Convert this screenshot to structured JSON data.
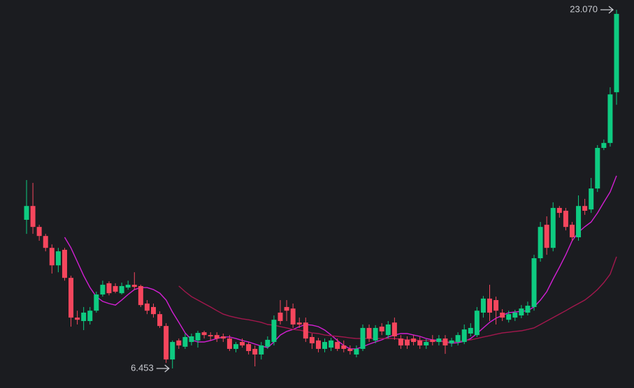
{
  "chart_data": {
    "type": "candlestick",
    "up_color": "#0ecb81",
    "down_color": "#f6465d",
    "open": [
      13.34,
      13.98,
      13.01,
      12.59,
      12.04,
      11.23,
      11.95,
      10.65,
      8.81,
      8.65,
      8.65,
      9.13,
      9.88,
      10.4,
      10.27,
      9.94,
      10.2,
      10.33,
      10.27,
      9.46,
      9.3,
      8.97,
      8.42,
      6.87,
      7.75,
      7.46,
      7.68,
      7.75,
      8.13,
      8.0,
      8.0,
      7.94,
      7.84,
      7.36,
      7.68,
      7.58,
      7.36,
      7.1,
      7.46,
      7.68,
      9.04,
      9.3,
      9.23,
      8.58,
      8.58,
      7.91,
      7.75,
      7.36,
      7.42,
      7.68,
      7.52,
      7.36,
      7.1,
      7.36,
      8.33,
      7.75,
      8.39,
      8.0,
      8.58,
      7.84,
      7.78,
      7.84,
      7.75,
      7.52,
      7.78,
      7.68,
      7.84,
      7.62,
      7.68,
      7.68,
      8.07,
      8.0,
      9.04,
      9.69,
      9.62,
      9.04,
      8.71,
      8.81,
      8.91,
      9.04,
      9.3,
      11.56,
      13.11,
      12.04,
      13.89,
      13.76,
      13.11,
      12.53,
      13.98,
      13.82,
      14.79,
      16.67,
      16.9,
      19.25
    ],
    "high": [
      15.18,
      15.05,
      13.11,
      12.69,
      12.2,
      12.04,
      12.04,
      10.75,
      9.13,
      9.3,
      9.3,
      10.01,
      10.52,
      10.49,
      10.4,
      10.43,
      10.52,
      10.91,
      10.33,
      9.62,
      9.46,
      9.1,
      8.55,
      7.75,
      7.84,
      8.07,
      8.07,
      8.2,
      8.2,
      8.13,
      8.13,
      8.07,
      8.0,
      7.68,
      7.84,
      7.68,
      7.52,
      7.68,
      7.94,
      8.91,
      9.62,
      9.62,
      9.46,
      8.81,
      8.81,
      8.07,
      7.87,
      7.84,
      7.87,
      7.84,
      7.75,
      7.52,
      7.52,
      8.49,
      8.49,
      8.46,
      8.55,
      8.65,
      8.81,
      8.0,
      7.94,
      8.0,
      7.91,
      7.81,
      8.0,
      8.0,
      8.0,
      7.87,
      8.13,
      8.49,
      8.55,
      9.3,
      9.81,
      10.33,
      9.78,
      9.2,
      9.13,
      9.17,
      9.39,
      9.55,
      11.72,
      13.24,
      13.5,
      14.15,
      13.98,
      13.89,
      13.24,
      14.47,
      14.31,
      15.28,
      16.8,
      17.06,
      19.48,
      23.07
    ],
    "low": [
      12.69,
      12.69,
      12.37,
      11.88,
      10.85,
      10.91,
      10.52,
      8.39,
      8.49,
      8.23,
      8.49,
      9.04,
      9.78,
      9.84,
      9.94,
      9.88,
      10.1,
      10.1,
      9.3,
      8.97,
      8.81,
      8.33,
      6.71,
      6.453,
      7.36,
      7.36,
      7.52,
      7.42,
      7.84,
      7.75,
      7.68,
      7.68,
      7.26,
      7.2,
      7.42,
      7.1,
      6.55,
      6.87,
      7.36,
      7.52,
      8.49,
      8.65,
      8.33,
      8.33,
      7.68,
      7.36,
      7.2,
      7.2,
      7.26,
      7.26,
      7.2,
      7.1,
      6.97,
      7.26,
      7.68,
      7.62,
      8.0,
      7.84,
      7.78,
      7.36,
      7.36,
      7.52,
      7.36,
      7.36,
      7.52,
      7.52,
      7.13,
      7.46,
      7.52,
      7.58,
      7.94,
      7.91,
      8.81,
      8.65,
      8.49,
      8.65,
      8.58,
      8.65,
      8.78,
      8.91,
      9.13,
      11.4,
      11.72,
      11.88,
      13.44,
      12.85,
      12.37,
      12.37,
      13.57,
      13.66,
      14.63,
      16.57,
      16.73,
      18.67
    ],
    "close": [
      13.98,
      13.01,
      12.59,
      12.04,
      11.23,
      11.88,
      10.65,
      8.81,
      8.71,
      9.04,
      9.13,
      9.88,
      10.33,
      9.94,
      10.01,
      10.27,
      10.33,
      10.23,
      9.39,
      9.13,
      8.97,
      8.42,
      6.87,
      7.68,
      7.52,
      7.91,
      7.94,
      8.1,
      8.0,
      7.94,
      7.84,
      7.84,
      7.36,
      7.58,
      7.52,
      7.26,
      7.1,
      7.52,
      7.78,
      8.71,
      8.65,
      9.13,
      8.49,
      8.49,
      7.84,
      7.62,
      7.36,
      7.68,
      7.75,
      7.36,
      7.36,
      7.26,
      7.36,
      8.33,
      7.84,
      8.33,
      8.17,
      8.49,
      7.94,
      7.52,
      7.52,
      7.68,
      7.52,
      7.68,
      7.68,
      7.84,
      7.52,
      7.75,
      8.0,
      8.26,
      8.33,
      9.13,
      9.69,
      9.04,
      9.13,
      8.81,
      8.97,
      9.04,
      9.23,
      9.36,
      11.56,
      13.01,
      12.04,
      13.89,
      13.66,
      13.01,
      12.53,
      13.98,
      13.76,
      14.79,
      16.67,
      16.9,
      19.15,
      22.88
    ],
    "series": [
      {
        "color": "#d41fd4",
        "values": [
          null,
          null,
          null,
          null,
          null,
          null,
          12.53,
          12.04,
          11.4,
          10.75,
          10.2,
          9.78,
          9.56,
          9.46,
          9.39,
          9.62,
          9.88,
          10.11,
          10.2,
          10.2,
          10.11,
          9.94,
          9.62,
          9.07,
          8.59,
          8.1,
          7.78,
          7.68,
          7.68,
          7.75,
          7.84,
          7.91,
          7.91,
          7.84,
          7.75,
          7.68,
          7.58,
          7.49,
          7.42,
          7.68,
          8.0,
          8.17,
          8.26,
          8.39,
          8.49,
          8.46,
          8.39,
          8.23,
          8.0,
          7.75,
          7.52,
          7.36,
          7.36,
          7.46,
          7.58,
          7.68,
          7.78,
          7.91,
          8.0,
          8.07,
          8.07,
          8.0,
          7.94,
          7.84,
          7.78,
          7.75,
          7.68,
          7.62,
          7.65,
          7.71,
          7.84,
          8.07,
          8.33,
          8.59,
          8.78,
          8.91,
          9.04,
          9.07,
          9.1,
          9.13,
          9.3,
          9.62,
          10.01,
          10.59,
          11.14,
          11.72,
          12.37,
          12.76,
          13.02,
          13.24,
          13.66,
          14.15,
          14.63,
          15.38
        ]
      },
      {
        "color": "#a3174d",
        "values": [
          null,
          null,
          null,
          null,
          null,
          null,
          null,
          null,
          null,
          null,
          null,
          null,
          null,
          null,
          null,
          null,
          null,
          null,
          null,
          null,
          null,
          null,
          null,
          null,
          10.27,
          10.01,
          9.78,
          9.62,
          9.46,
          9.3,
          9.13,
          8.97,
          8.88,
          8.81,
          8.75,
          8.71,
          8.65,
          8.59,
          8.49,
          8.46,
          8.39,
          8.33,
          8.26,
          8.23,
          8.17,
          8.1,
          8.07,
          8.0,
          7.97,
          7.94,
          7.91,
          7.87,
          7.84,
          7.84,
          7.84,
          7.84,
          7.84,
          7.84,
          7.84,
          7.81,
          7.78,
          7.78,
          7.75,
          7.75,
          7.71,
          7.71,
          7.68,
          7.68,
          7.71,
          7.75,
          7.78,
          7.84,
          7.91,
          7.97,
          8.04,
          8.1,
          8.13,
          8.17,
          8.2,
          8.26,
          8.33,
          8.49,
          8.65,
          8.81,
          8.97,
          9.13,
          9.3,
          9.46,
          9.62,
          9.85,
          10.11,
          10.43,
          10.82,
          11.63
        ]
      }
    ],
    "annotations": [
      {
        "value": 23.07,
        "label": "23.070"
      },
      {
        "value": 6.453,
        "label": "6.453"
      }
    ]
  }
}
